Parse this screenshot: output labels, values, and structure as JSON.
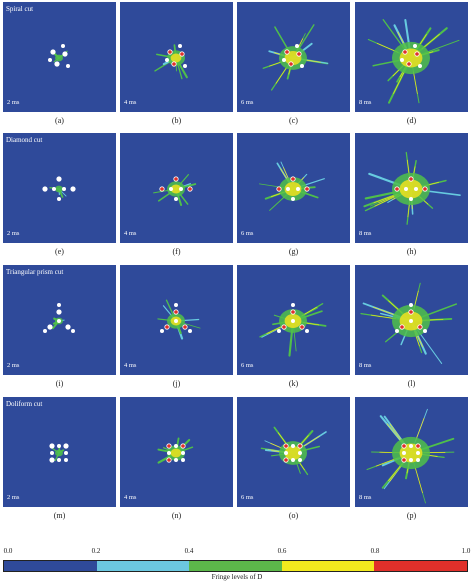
{
  "rows": [
    {
      "title": "Spiral cut",
      "panels": [
        {
          "time": "2 ms",
          "caption": "(a)"
        },
        {
          "time": "4 ms",
          "caption": "(b)"
        },
        {
          "time": "6 ms",
          "caption": "(c)"
        },
        {
          "time": "8 ms",
          "caption": "(d)"
        }
      ]
    },
    {
      "title": "Diamond cut",
      "panels": [
        {
          "time": "2 ms",
          "caption": "(e)"
        },
        {
          "time": "4 ms",
          "caption": "(f)"
        },
        {
          "time": "6 ms",
          "caption": "(g)"
        },
        {
          "time": "8 ms",
          "caption": "(h)"
        }
      ]
    },
    {
      "title": "Triangular prism cut",
      "panels": [
        {
          "time": "2 ms",
          "caption": "(i)"
        },
        {
          "time": "4 ms",
          "caption": "(j)"
        },
        {
          "time": "6 ms",
          "caption": "(k)"
        },
        {
          "time": "8 ms",
          "caption": "(l)"
        }
      ]
    },
    {
      "title": "Doliform cut",
      "panels": [
        {
          "time": "2 ms",
          "caption": "(m)"
        },
        {
          "time": "4 ms",
          "caption": "(n)"
        },
        {
          "time": "6 ms",
          "caption": "(o)"
        },
        {
          "time": "8 ms",
          "caption": "(p)"
        }
      ]
    }
  ],
  "colorbar": {
    "ticks": [
      "0.0",
      "0.2",
      "0.4",
      "0.6",
      "0.8",
      "1.0"
    ],
    "colors": [
      "#2f4a9a",
      "#6cc8e0",
      "#5cb84a",
      "#f2ea1e",
      "#e0302a"
    ],
    "label": "Fringe levels of D",
    "background_color": "#2f4a9a"
  }
}
